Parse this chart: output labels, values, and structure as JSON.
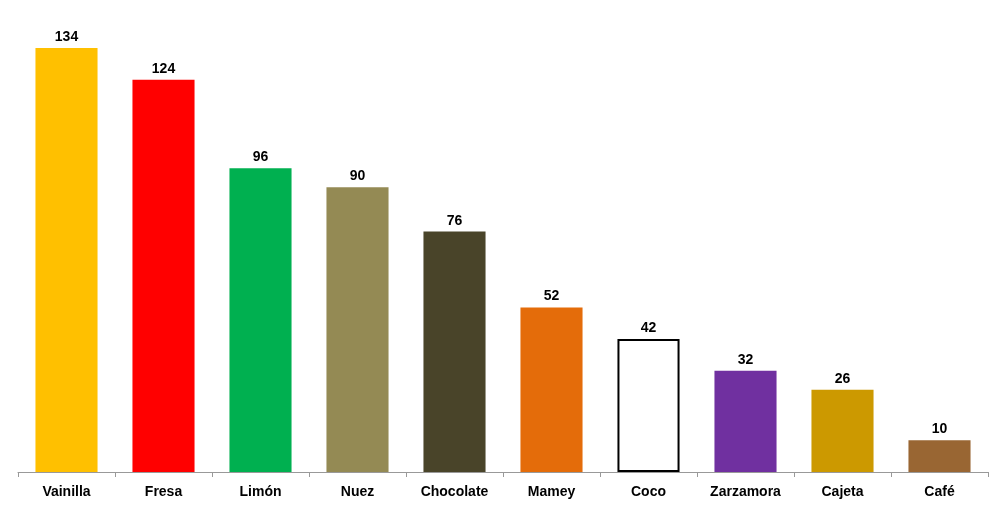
{
  "chart_data": {
    "type": "bar",
    "categories": [
      "Vainilla",
      "Fresa",
      "Limón",
      "Nuez",
      "Chocolate",
      "Mamey",
      "Coco",
      "Zarzamora",
      "Cajeta",
      "Café"
    ],
    "values": [
      134,
      124,
      96,
      90,
      76,
      52,
      42,
      32,
      26,
      10
    ],
    "colors": [
      "#ffc000",
      "#ff0000",
      "#00b050",
      "#948a54",
      "#494429",
      "#e46c0a",
      "#ffffff",
      "#7030a0",
      "#cc9900",
      "#996633"
    ],
    "data_labels": true
  }
}
